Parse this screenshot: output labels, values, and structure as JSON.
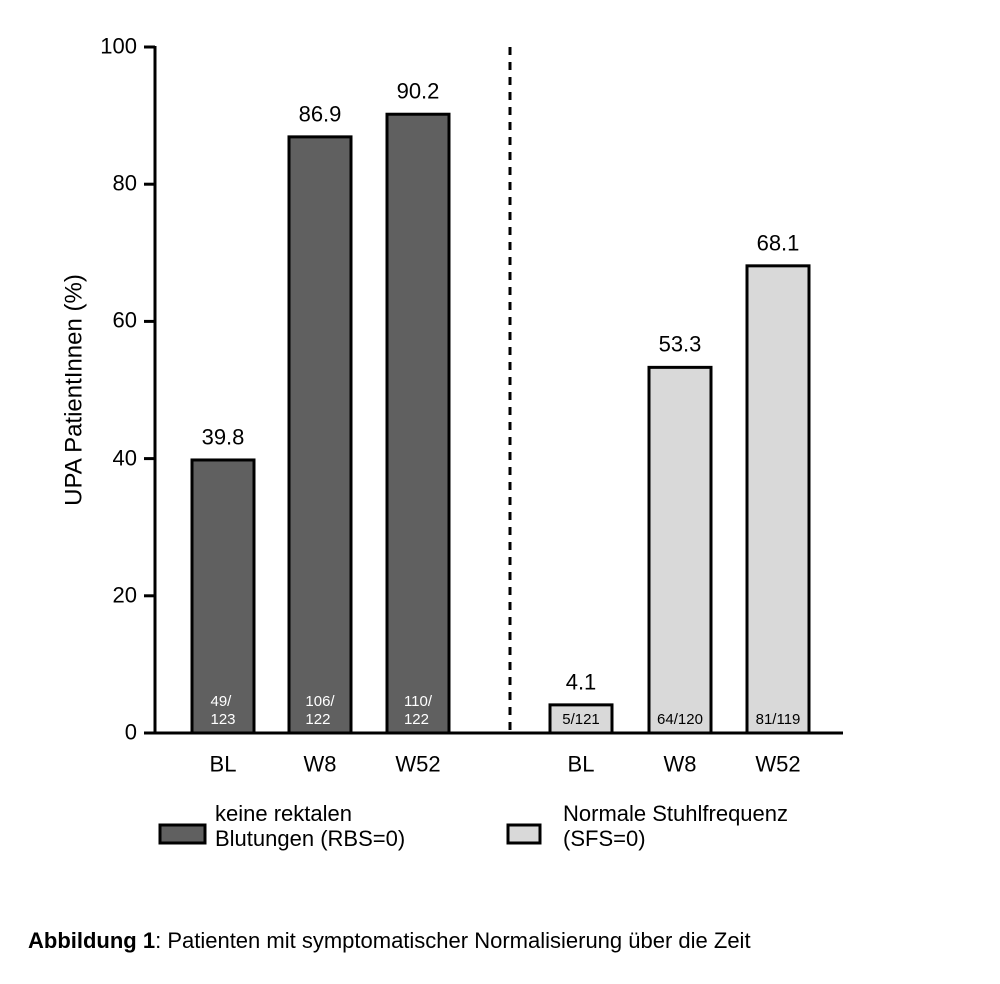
{
  "chart_data": {
    "type": "bar",
    "y_label": "UPA PatientInnen (%)",
    "ylim": [
      0,
      100
    ],
    "yticks": [
      0,
      20,
      40,
      60,
      80,
      100
    ],
    "categories": [
      "BL",
      "W8",
      "W52"
    ],
    "series": [
      {
        "name": "keine rektalen\nBlutungen (RBS=0)",
        "color": "#606060",
        "count_color": "#ffffff",
        "values": [
          39.8,
          86.9,
          90.2
        ],
        "counts": [
          "49/\n123",
          "106/\n122",
          "110/\n122"
        ]
      },
      {
        "name": "Normale Stuhlfrequenz\n(SFS=0)",
        "color": "#d9d9d9",
        "count_color": "#000000",
        "values": [
          4.1,
          53.3,
          68.1
        ],
        "counts": [
          "5/121",
          "64/120",
          "81/119"
        ]
      }
    ]
  },
  "caption": {
    "label": "Abbildung 1",
    "text": ": Patienten mit symptomatischer Normalisierung über die Zeit"
  }
}
